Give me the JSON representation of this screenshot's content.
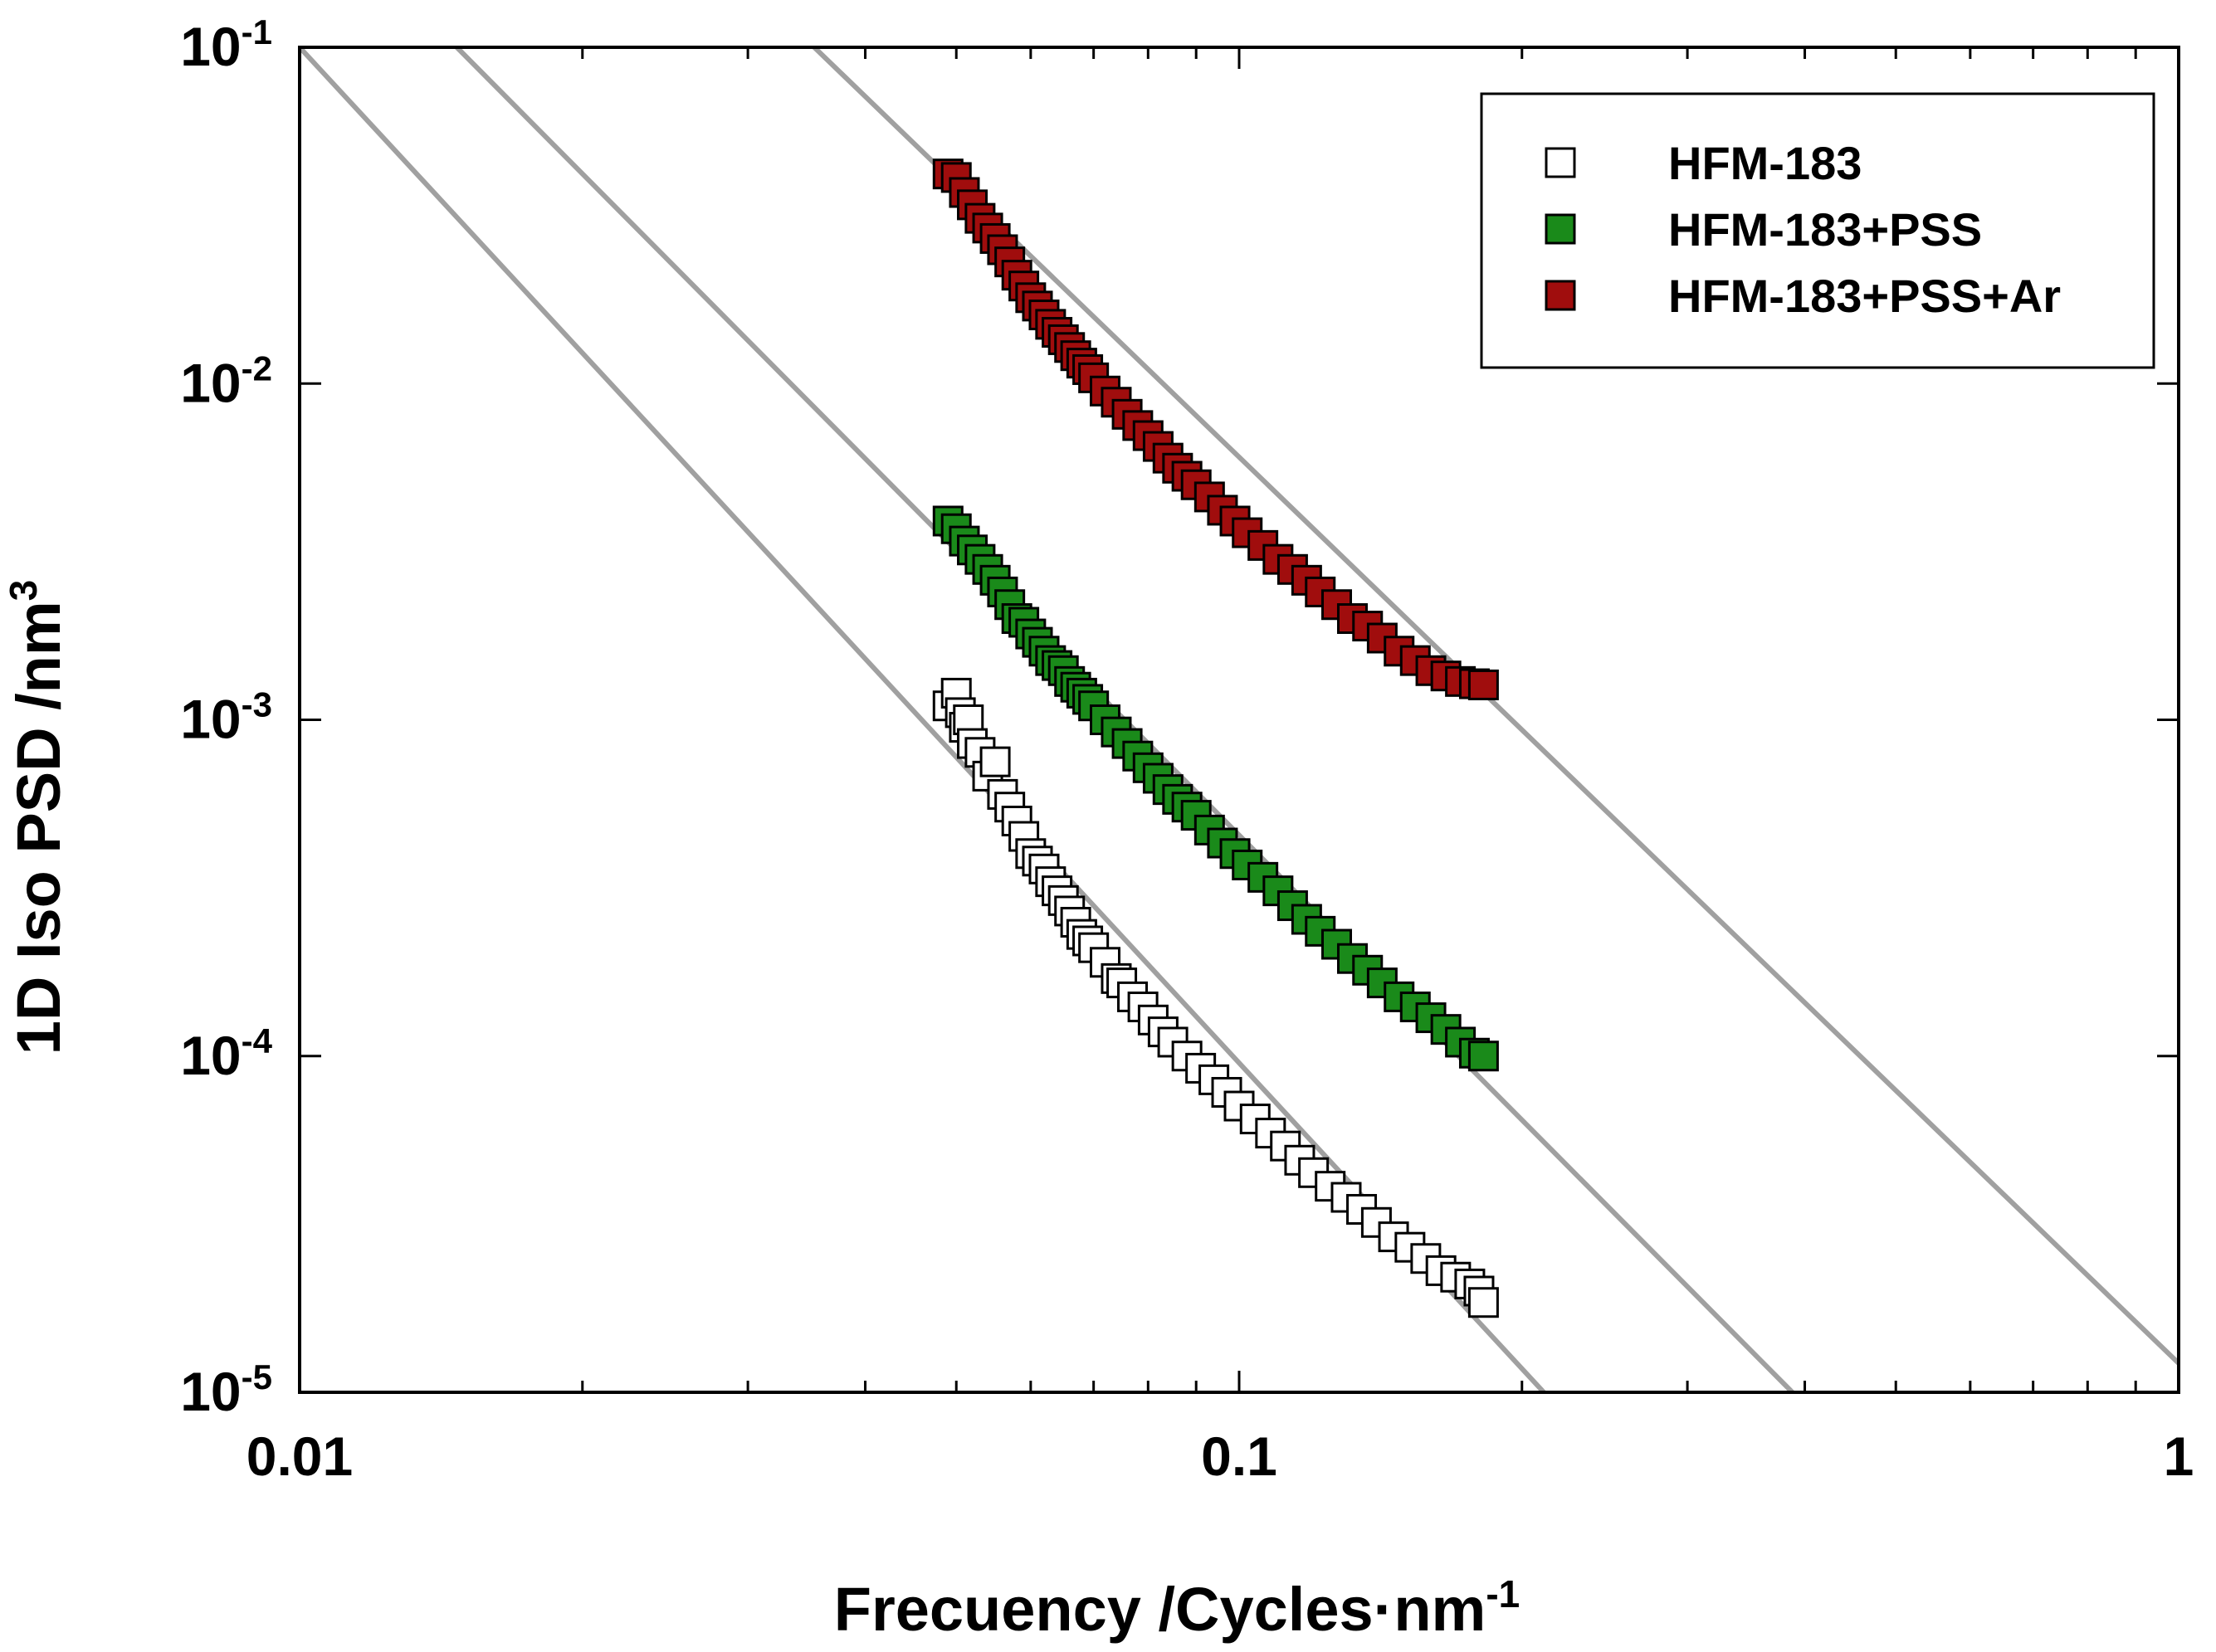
{
  "chart_data": {
    "type": "scatter",
    "x_scale": "log",
    "y_scale": "log",
    "xlim": [
      0.01,
      1
    ],
    "ylim": [
      1e-05,
      0.1
    ],
    "grid": false,
    "legend_position": "top-right",
    "xlabel": {
      "main": "Frecuency /Cycles·nm",
      "sup": "-1"
    },
    "ylabel": {
      "main": "1D Iso PSD /nm",
      "sup": "3"
    },
    "x_ticks": [
      {
        "value": 0.01,
        "label": "0.01"
      },
      {
        "value": 0.1,
        "label": "0.1"
      },
      {
        "value": 1,
        "label": "1"
      }
    ],
    "y_ticks": [
      {
        "value": 0.1,
        "base": "10",
        "exp": "-1"
      },
      {
        "value": 0.01,
        "base": "10",
        "exp": "-2"
      },
      {
        "value": 0.001,
        "base": "10",
        "exp": "-3"
      },
      {
        "value": 0.0001,
        "base": "10",
        "exp": "-4"
      },
      {
        "value": 1e-05,
        "base": "10",
        "exp": "-5"
      }
    ],
    "series": [
      {
        "name": "HFM-183",
        "fill": "#ffffff",
        "x": [
          0.049,
          0.05,
          0.0505,
          0.051,
          0.0515,
          0.052,
          0.053,
          0.054,
          0.055,
          0.056,
          0.057,
          0.058,
          0.059,
          0.06,
          0.061,
          0.062,
          0.063,
          0.064,
          0.065,
          0.066,
          0.067,
          0.068,
          0.069,
          0.07,
          0.072,
          0.074,
          0.075,
          0.077,
          0.079,
          0.081,
          0.083,
          0.085,
          0.088,
          0.091,
          0.094,
          0.097,
          0.1,
          0.104,
          0.108,
          0.112,
          0.116,
          0.12,
          0.125,
          0.13,
          0.135,
          0.14,
          0.146,
          0.152,
          0.158,
          0.164,
          0.17,
          0.176,
          0.18,
          0.182
        ],
        "y": [
          0.0011,
          0.0012,
          0.00105,
          0.00095,
          0.001,
          0.00085,
          0.0008,
          0.00068,
          0.00075,
          0.0006,
          0.00055,
          0.0005,
          0.00045,
          0.0004,
          0.00038,
          0.00036,
          0.00033,
          0.00031,
          0.00029,
          0.00027,
          0.00025,
          0.00023,
          0.00022,
          0.00021,
          0.00019,
          0.00017,
          0.000165,
          0.00015,
          0.00014,
          0.000128,
          0.000118,
          0.00011,
          0.0001,
          9.2e-05,
          8.5e-05,
          7.8e-05,
          7.1e-05,
          6.5e-05,
          5.9e-05,
          5.4e-05,
          4.9e-05,
          4.5e-05,
          4.1e-05,
          3.8e-05,
          3.5e-05,
          3.2e-05,
          2.9e-05,
          2.7e-05,
          2.5e-05,
          2.3e-05,
          2.2e-05,
          2.1e-05,
          2e-05,
          1.85e-05
        ]
      },
      {
        "name": "HFM-183+PSS",
        "fill": "#1a8a1a",
        "x": [
          0.049,
          0.05,
          0.051,
          0.052,
          0.053,
          0.054,
          0.055,
          0.056,
          0.057,
          0.058,
          0.059,
          0.06,
          0.061,
          0.062,
          0.063,
          0.064,
          0.065,
          0.066,
          0.067,
          0.068,
          0.069,
          0.07,
          0.072,
          0.074,
          0.076,
          0.078,
          0.08,
          0.082,
          0.084,
          0.086,
          0.088,
          0.09,
          0.093,
          0.096,
          0.099,
          0.102,
          0.106,
          0.11,
          0.114,
          0.118,
          0.122,
          0.127,
          0.132,
          0.137,
          0.142,
          0.148,
          0.154,
          0.16,
          0.166,
          0.172,
          0.178,
          0.182
        ],
        "y": [
          0.0039,
          0.0037,
          0.0034,
          0.0032,
          0.003,
          0.0028,
          0.0026,
          0.0024,
          0.0022,
          0.002,
          0.00195,
          0.0018,
          0.0017,
          0.0016,
          0.0015,
          0.00145,
          0.0014,
          0.0013,
          0.00125,
          0.0012,
          0.00115,
          0.0011,
          0.001,
          0.00092,
          0.00085,
          0.00078,
          0.00072,
          0.00067,
          0.00062,
          0.00058,
          0.00055,
          0.00052,
          0.00047,
          0.00043,
          0.0004,
          0.00037,
          0.00034,
          0.00031,
          0.00028,
          0.000255,
          0.000235,
          0.000215,
          0.000195,
          0.00018,
          0.000165,
          0.00015,
          0.00014,
          0.00013,
          0.00012,
          0.00011,
          0.000102,
          0.0001
        ]
      },
      {
        "name": "HFM-183+PSS+Ar",
        "fill": "#a00d0d",
        "x": [
          0.049,
          0.05,
          0.051,
          0.052,
          0.053,
          0.054,
          0.055,
          0.056,
          0.057,
          0.058,
          0.059,
          0.06,
          0.061,
          0.062,
          0.063,
          0.064,
          0.065,
          0.066,
          0.067,
          0.068,
          0.069,
          0.07,
          0.072,
          0.074,
          0.076,
          0.078,
          0.08,
          0.082,
          0.084,
          0.086,
          0.088,
          0.09,
          0.093,
          0.096,
          0.099,
          0.102,
          0.106,
          0.11,
          0.114,
          0.118,
          0.122,
          0.127,
          0.132,
          0.137,
          0.142,
          0.148,
          0.154,
          0.16,
          0.166,
          0.172,
          0.178,
          0.182
        ],
        "y": [
          0.042,
          0.041,
          0.037,
          0.034,
          0.031,
          0.029,
          0.027,
          0.025,
          0.023,
          0.021,
          0.0195,
          0.018,
          0.017,
          0.016,
          0.015,
          0.0142,
          0.0135,
          0.0128,
          0.0121,
          0.0115,
          0.011,
          0.0104,
          0.0095,
          0.0088,
          0.0081,
          0.0075,
          0.007,
          0.0065,
          0.006,
          0.0056,
          0.0053,
          0.005,
          0.0046,
          0.0042,
          0.0039,
          0.0036,
          0.0033,
          0.003,
          0.0028,
          0.0026,
          0.0024,
          0.0022,
          0.002,
          0.0019,
          0.00175,
          0.0016,
          0.0015,
          0.0014,
          0.00135,
          0.0013,
          0.00128,
          0.00127
        ]
      }
    ],
    "reference_lines": [
      {
        "color": "#a0a0a0",
        "points": [
          [
            0.01,
            0.1
          ],
          [
            0.211,
            1e-05
          ]
        ]
      },
      {
        "color": "#a0a0a0",
        "points": [
          [
            0.0147,
            0.1
          ],
          [
            0.388,
            1e-05
          ]
        ]
      },
      {
        "color": "#a0a0a0",
        "points": [
          [
            0.0353,
            0.1
          ],
          [
            1.0,
            1.22e-05
          ]
        ]
      }
    ]
  }
}
